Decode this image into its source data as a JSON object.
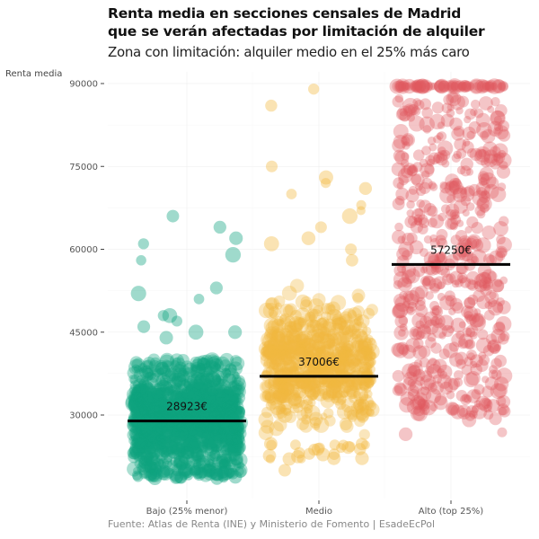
{
  "chart_data": {
    "type": "scatter",
    "subtype": "jitter-strip",
    "title": "Renta media en secciones censales de Madrid\nque se verán afectadas por limitación de alquiler",
    "title_lines": [
      "Renta media en secciones censales de Madrid",
      "que se verán afectadas por limitación de alquiler"
    ],
    "subtitle": "Zona con limitación: alquiler medio en el 25% más caro",
    "xlabel": "",
    "ylabel": "Renta media",
    "caption": "Fuente: Atlas de Renta (INE) y Ministerio de Fomento | EsadeEcPol",
    "categories": [
      "Bajo (25% menor)",
      "Medio",
      "Alto (top 25%)"
    ],
    "yticks": [
      30000,
      45000,
      60000,
      75000,
      90000
    ],
    "ytick_labels": [
      "30000",
      "45000",
      "60000",
      "75000",
      "90000"
    ],
    "ylim": [
      15000,
      92000
    ],
    "grid": true,
    "legend": "none",
    "series": [
      {
        "name": "Bajo (25% menor)",
        "color": "#0fa37f",
        "mean": 28923,
        "mean_label": "28923€",
        "range": [
          18000,
          66000
        ],
        "dense_range": [
          19000,
          40000
        ],
        "outliers": [
          66000,
          64000,
          62000,
          61000,
          59000,
          58000,
          53000,
          52000,
          51000,
          48000,
          48000,
          47000,
          46000,
          45000,
          45000,
          44000
        ]
      },
      {
        "name": "Medio",
        "color": "#f2b840",
        "mean": 37006,
        "mean_label": "37006€",
        "range": [
          20000,
          89000
        ],
        "dense_range": [
          24000,
          55000
        ],
        "outliers": [
          89000,
          86000,
          75000,
          73000,
          72000,
          71000,
          70000,
          68000,
          67000,
          66000,
          64000,
          62000,
          61000,
          60000,
          58000
        ]
      },
      {
        "name": "Alto (top 25%)",
        "color": "#e05a5f",
        "mean": 57250,
        "mean_label": "57250€",
        "range": [
          25000,
          89500
        ],
        "dense_range": [
          30000,
          89500
        ],
        "cap_value": 89500
      }
    ]
  }
}
